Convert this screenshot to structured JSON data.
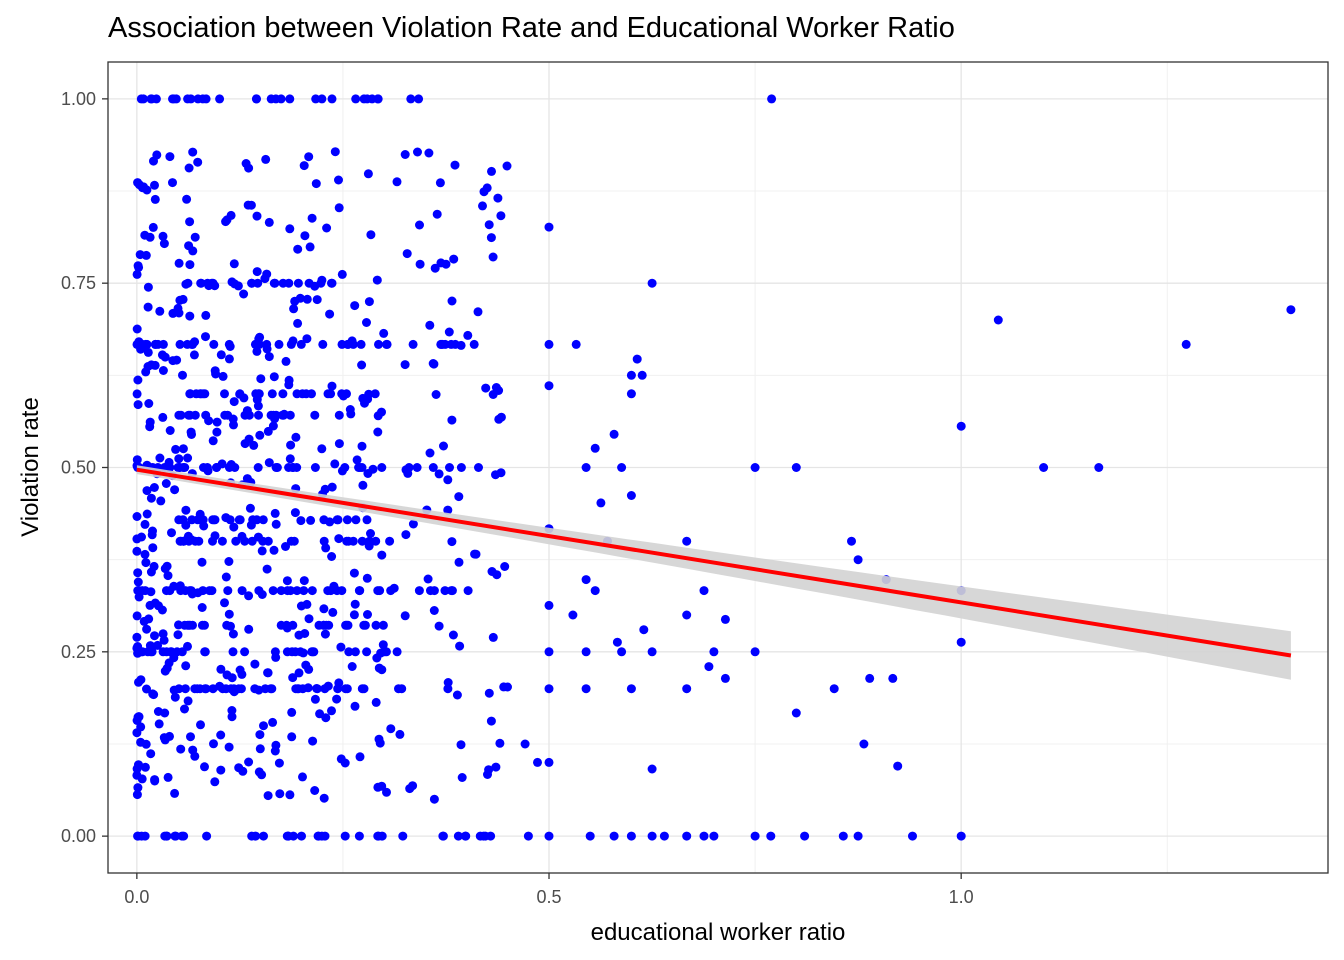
{
  "chart_data": {
    "type": "scatter",
    "title": "Association between Violation Rate and Educational Worker Ratio",
    "xlabel": "educational worker ratio",
    "ylabel": "Violation rate",
    "xlim": [
      -0.035,
      1.445
    ],
    "ylim": [
      -0.05,
      1.05
    ],
    "x_ticks": [
      0,
      0.5,
      1.0
    ],
    "x_tick_labels": [
      "0.0",
      "0.5",
      "1.0"
    ],
    "y_ticks": [
      0,
      0.25,
      0.5,
      0.75,
      1.0
    ],
    "y_tick_labels": [
      "0.00",
      "0.25",
      "0.50",
      "0.75",
      "1.00"
    ],
    "grid": true,
    "point_color": "#0000ff",
    "trend_color": "#ff0000",
    "band_color": "#d3d3d3",
    "trend": {
      "method": "linear",
      "x": [
        0.0,
        1.4
      ],
      "y": [
        0.497,
        0.245
      ],
      "ci_halfwidth": [
        0.006,
        0.033
      ]
    },
    "sparse_points": [
      [
        0.77,
        1.0
      ],
      [
        0.449,
        0.909
      ],
      [
        0.5,
        0.826
      ],
      [
        0.625,
        0.75
      ],
      [
        0.5,
        0.667
      ],
      [
        0.533,
        0.667
      ],
      [
        0.607,
        0.647
      ],
      [
        0.6,
        0.625
      ],
      [
        0.613,
        0.625
      ],
      [
        0.5,
        0.611
      ],
      [
        0.6,
        0.6
      ],
      [
        0.579,
        0.545
      ],
      [
        0.556,
        0.526
      ],
      [
        0.545,
        0.5
      ],
      [
        0.588,
        0.5
      ],
      [
        0.75,
        0.5
      ],
      [
        0.8,
        0.5
      ],
      [
        1.0,
        0.556
      ],
      [
        1.1,
        0.5
      ],
      [
        1.167,
        0.5
      ],
      [
        1.045,
        0.7
      ],
      [
        1.273,
        0.667
      ],
      [
        1.4,
        0.714
      ],
      [
        0.563,
        0.452
      ],
      [
        0.6,
        0.462
      ],
      [
        0.5,
        0.417
      ],
      [
        0.571,
        0.4
      ],
      [
        0.667,
        0.4
      ],
      [
        0.867,
        0.4
      ],
      [
        0.875,
        0.375
      ],
      [
        0.909,
        0.348
      ],
      [
        1.0,
        0.333
      ],
      [
        0.688,
        0.333
      ],
      [
        0.5,
        0.313
      ],
      [
        0.545,
        0.348
      ],
      [
        0.556,
        0.333
      ],
      [
        0.529,
        0.3
      ],
      [
        0.667,
        0.3
      ],
      [
        0.714,
        0.294
      ],
      [
        0.5,
        0.25
      ],
      [
        0.545,
        0.25
      ],
      [
        0.588,
        0.25
      ],
      [
        0.625,
        0.25
      ],
      [
        0.7,
        0.25
      ],
      [
        0.75,
        0.25
      ],
      [
        1.0,
        0.263
      ],
      [
        0.5,
        0.2
      ],
      [
        0.545,
        0.2
      ],
      [
        0.6,
        0.2
      ],
      [
        0.615,
        0.28
      ],
      [
        0.583,
        0.263
      ],
      [
        0.667,
        0.2
      ],
      [
        0.694,
        0.23
      ],
      [
        0.714,
        0.214
      ],
      [
        0.846,
        0.2
      ],
      [
        0.889,
        0.214
      ],
      [
        0.917,
        0.214
      ],
      [
        0.8,
        0.167
      ],
      [
        0.471,
        0.125
      ],
      [
        0.882,
        0.125
      ],
      [
        0.625,
        0.091
      ],
      [
        0.923,
        0.095
      ],
      [
        0.486,
        0.1
      ],
      [
        0.5,
        0.1
      ],
      [
        0.475,
        0.0
      ],
      [
        0.5,
        0.0
      ],
      [
        0.55,
        0.0
      ],
      [
        0.579,
        0.0
      ],
      [
        0.6,
        0.0
      ],
      [
        0.625,
        0.0
      ],
      [
        0.64,
        0.0
      ],
      [
        0.667,
        0.0
      ],
      [
        0.688,
        0.0
      ],
      [
        0.7,
        0.0
      ],
      [
        0.75,
        0.0
      ],
      [
        0.769,
        0.0
      ],
      [
        0.81,
        0.0
      ],
      [
        0.857,
        0.0
      ],
      [
        0.875,
        0.0
      ],
      [
        0.941,
        0.0
      ],
      [
        1.0,
        0.0
      ]
    ],
    "dense_cluster": {
      "x_range": [
        0.0,
        0.45
      ],
      "rows": [
        {
          "y": 0.0,
          "x": [
            0.0,
            0.43
          ]
        },
        {
          "y": 0.333,
          "x": [
            0.0,
            0.43
          ]
        },
        {
          "y": 0.5,
          "x": [
            0.0,
            0.43
          ]
        },
        {
          "y": 0.667,
          "x": [
            0.0,
            0.43
          ]
        },
        {
          "y": 0.25,
          "x": [
            0.0,
            0.32
          ]
        },
        {
          "y": 1.0,
          "x": [
            0.0,
            0.35
          ]
        },
        {
          "y": 0.4,
          "x": [
            0.05,
            0.32
          ]
        },
        {
          "y": 0.6,
          "x": [
            0.05,
            0.3
          ]
        },
        {
          "y": 0.2,
          "x": [
            0.05,
            0.4
          ]
        },
        {
          "y": 0.286,
          "x": [
            0.05,
            0.3
          ]
        },
        {
          "y": 0.75,
          "x": [
            0.05,
            0.25
          ]
        },
        {
          "y": 0.429,
          "x": [
            0.05,
            0.28
          ]
        },
        {
          "y": 0.571,
          "x": [
            0.05,
            0.26
          ]
        }
      ]
    }
  }
}
